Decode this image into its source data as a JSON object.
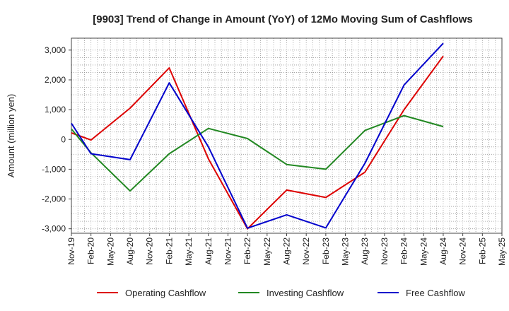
{
  "chart_data": {
    "type": "line",
    "title": "[9903]  Trend of Change in Amount (YoY) of 12Mo Moving Sum of Cashflows",
    "xlabel": "",
    "ylabel": "Amount (million yen)",
    "ylim": [
      -3150,
      3400
    ],
    "yticks": [
      3000,
      2000,
      1000,
      0,
      -1000,
      -2000,
      -3000
    ],
    "ytick_labels": [
      "3,000",
      "2,000",
      "1,000",
      "0",
      "-1,000",
      "-2,000",
      "-3,000"
    ],
    "categories": [
      "Nov-19",
      "Feb-20",
      "May-20",
      "Aug-20",
      "Nov-20",
      "Feb-21",
      "May-21",
      "Aug-21",
      "Nov-21",
      "Feb-22",
      "May-22",
      "Aug-22",
      "Nov-22",
      "Feb-23",
      "May-23",
      "Aug-23",
      "Nov-23",
      "Feb-24",
      "May-24",
      "Aug-24",
      "Nov-24",
      "Feb-25",
      "May-25"
    ],
    "grid": true,
    "legend_position": "bottom",
    "series": [
      {
        "name": "Operating Cashflow",
        "color": "#dd0000",
        "values": [
          220,
          -20,
          null,
          1050,
          null,
          2400,
          null,
          -650,
          null,
          -3000,
          null,
          -1700,
          null,
          -1950,
          null,
          -1100,
          null,
          1000,
          null,
          2800,
          null,
          null,
          null
        ]
      },
      {
        "name": "Investing Cashflow",
        "color": "#228822",
        "values": [
          350,
          -450,
          null,
          -1730,
          null,
          -480,
          null,
          370,
          null,
          30,
          null,
          -840,
          null,
          -1000,
          null,
          300,
          null,
          800,
          null,
          430,
          null,
          null,
          null
        ]
      },
      {
        "name": "Free Cashflow",
        "color": "#0000cc",
        "values": [
          540,
          -480,
          null,
          -680,
          null,
          1900,
          null,
          -250,
          null,
          -2980,
          null,
          -2530,
          null,
          -2970,
          null,
          -800,
          null,
          1830,
          null,
          3230,
          null,
          null,
          null
        ]
      }
    ]
  }
}
